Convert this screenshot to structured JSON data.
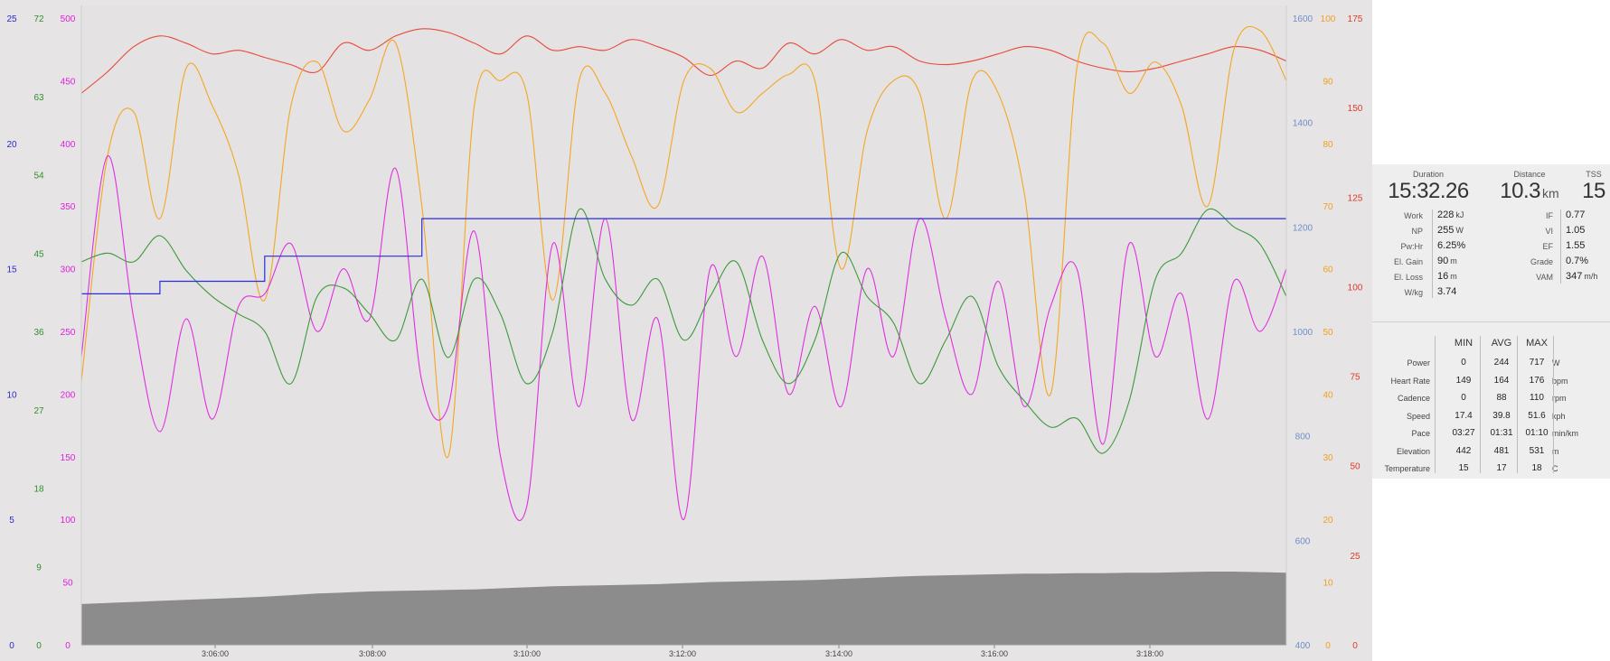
{
  "chart_data": {
    "type": "line",
    "x_ticks": [
      "3:06:00",
      "3:08:00",
      "3:10:00",
      "3:12:00",
      "3:14:00",
      "3:16:00",
      "3:18:00"
    ],
    "axes": {
      "power": {
        "color": "#e020e0",
        "range": [
          0,
          500
        ],
        "ticks": [
          "0",
          "50",
          "100",
          "150",
          "200",
          "250",
          "300",
          "350",
          "400",
          "450",
          "500"
        ]
      },
      "cadence": {
        "color": "#2f8f2f",
        "range": [
          0,
          72
        ],
        "ticks": [
          "0",
          "9",
          "18",
          "27",
          "36",
          "45",
          "54",
          "63",
          "72"
        ]
      },
      "speed": {
        "color": "#2b2bc8",
        "range": [
          0,
          25
        ],
        "ticks": [
          "0",
          "5",
          "10",
          "15",
          "20",
          "25"
        ]
      },
      "elevation": {
        "color": "#6f8fc8",
        "range": [
          400,
          1600
        ],
        "ticks": [
          "400",
          "600",
          "800",
          "1000",
          "1200",
          "1400",
          "1600"
        ]
      },
      "temperature": {
        "color": "#f0a020",
        "range": [
          0,
          100
        ],
        "ticks": [
          "0",
          "10",
          "20",
          "30",
          "40",
          "50",
          "60",
          "70",
          "80",
          "90",
          "100"
        ]
      },
      "heart_rate": {
        "color": "#e03a2a",
        "range": [
          0,
          175
        ],
        "ticks": [
          "0",
          "25",
          "50",
          "75",
          "100",
          "125",
          "150",
          "175"
        ]
      }
    },
    "series": [
      {
        "key": "heart_rate",
        "color": "#e84a3a",
        "axis": "heart_rate",
        "values": [
          154,
          160,
          167,
          170,
          168,
          165,
          166,
          164,
          162,
          160,
          168,
          166,
          170,
          172,
          171,
          168,
          165,
          170,
          166,
          167,
          166,
          169,
          167,
          164,
          159,
          163,
          161,
          168,
          165,
          169,
          166,
          167,
          163,
          162,
          163,
          165,
          167,
          166,
          163,
          161,
          160,
          161,
          163,
          165,
          167,
          166,
          163
        ]
      },
      {
        "key": "temperature",
        "color": "#f5a623",
        "axis": "temperature",
        "values": [
          42,
          78,
          85,
          68,
          92,
          86,
          75,
          55,
          86,
          93,
          82,
          87,
          96,
          70,
          30,
          86,
          90,
          88,
          55,
          90,
          88,
          78,
          70,
          90,
          92,
          85,
          88,
          91,
          90,
          60,
          82,
          90,
          88,
          68,
          90,
          88,
          72,
          40,
          92,
          96,
          88,
          93,
          86,
          70,
          95,
          98,
          90
        ]
      },
      {
        "key": "power",
        "color": "#e030e0",
        "axis": "power",
        "values": [
          230,
          390,
          260,
          170,
          260,
          180,
          270,
          280,
          320,
          250,
          300,
          260,
          380,
          210,
          190,
          330,
          150,
          110,
          320,
          190,
          340,
          180,
          260,
          100,
          300,
          230,
          310,
          200,
          270,
          190,
          300,
          230,
          340,
          260,
          200,
          290,
          190,
          270,
          300,
          160,
          320,
          230,
          280,
          180,
          290,
          250,
          300
        ]
      },
      {
        "key": "cadence",
        "color": "#3c9a3c",
        "axis": "cadence",
        "values": [
          44,
          45,
          44,
          47,
          43,
          40,
          38,
          36,
          30,
          40,
          41,
          38,
          35,
          42,
          33,
          42,
          38,
          30,
          36,
          50,
          42,
          39,
          42,
          35,
          40,
          44,
          35,
          30,
          35,
          45,
          40,
          37,
          30,
          35,
          40,
          32,
          28,
          25,
          26,
          22,
          28,
          42,
          45,
          50,
          48,
          46,
          40
        ]
      },
      {
        "key": "speed",
        "color": "#2b2be0",
        "axis": "speed",
        "values": [
          14,
          14,
          14,
          14.5,
          14.5,
          14.5,
          14.5,
          15.5,
          15.5,
          15.5,
          15.5,
          15.5,
          15.5,
          17,
          17,
          17,
          17,
          17,
          17,
          17,
          17,
          17,
          17,
          17,
          17,
          17,
          17,
          17,
          17,
          17,
          17,
          17,
          17,
          17,
          17,
          17,
          17,
          17,
          17,
          17,
          17,
          17,
          17,
          17,
          17,
          17,
          17
        ]
      },
      {
        "key": "elevation",
        "color": "#8c8c8c",
        "axis": "elevation",
        "type": "area",
        "values": [
          478,
          480,
          482,
          484,
          486,
          488,
          490,
          492,
          495,
          498,
          500,
          502,
          503,
          504,
          505,
          506,
          508,
          510,
          512,
          513,
          514,
          515,
          516,
          518,
          520,
          521,
          522,
          523,
          524,
          526,
          528,
          530,
          532,
          533,
          534,
          535,
          536,
          536,
          537,
          537,
          538,
          538,
          539,
          540,
          540,
          539,
          538
        ]
      }
    ]
  },
  "summary": {
    "duration": {
      "label": "Duration",
      "value": "15:32.26"
    },
    "distance": {
      "label": "Distance",
      "value": "10.3",
      "unit": "km"
    },
    "tss": {
      "label": "TSS",
      "value": "15"
    },
    "metrics_left": [
      {
        "label": "Work",
        "value": "228",
        "unit": "kJ"
      },
      {
        "label": "NP",
        "value": "255",
        "unit": "W"
      },
      {
        "label": "Pw:Hr",
        "value": "6.25%",
        "unit": ""
      },
      {
        "label": "El. Gain",
        "value": "90",
        "unit": "m"
      },
      {
        "label": "El. Loss",
        "value": "16",
        "unit": "m"
      },
      {
        "label": "W/kg",
        "value": "3.74",
        "unit": ""
      }
    ],
    "metrics_right": [
      {
        "label": "IF",
        "value": "0.77",
        "unit": ""
      },
      {
        "label": "VI",
        "value": "1.05",
        "unit": ""
      },
      {
        "label": "EF",
        "value": "1.55",
        "unit": ""
      },
      {
        "label": "Grade",
        "value": "0.7%",
        "unit": ""
      },
      {
        "label": "VAM",
        "value": "347",
        "unit": "m/h"
      }
    ],
    "stats_headers": [
      "MIN",
      "AVG",
      "MAX"
    ],
    "stats": [
      {
        "label": "Power",
        "min": "0",
        "avg": "244",
        "max": "717",
        "unit": "W"
      },
      {
        "label": "Heart Rate",
        "min": "149",
        "avg": "164",
        "max": "176",
        "unit": "bpm"
      },
      {
        "label": "Cadence",
        "min": "0",
        "avg": "88",
        "max": "110",
        "unit": "rpm"
      },
      {
        "label": "Speed",
        "min": "17.4",
        "avg": "39.8",
        "max": "51.6",
        "unit": "kph"
      },
      {
        "label": "Pace",
        "min": "03:27",
        "avg": "01:31",
        "max": "01:10",
        "unit": "min/km"
      },
      {
        "label": "Elevation",
        "min": "442",
        "avg": "481",
        "max": "531",
        "unit": "m"
      },
      {
        "label": "Temperature",
        "min": "15",
        "avg": "17",
        "max": "18",
        "unit": "C"
      }
    ]
  }
}
